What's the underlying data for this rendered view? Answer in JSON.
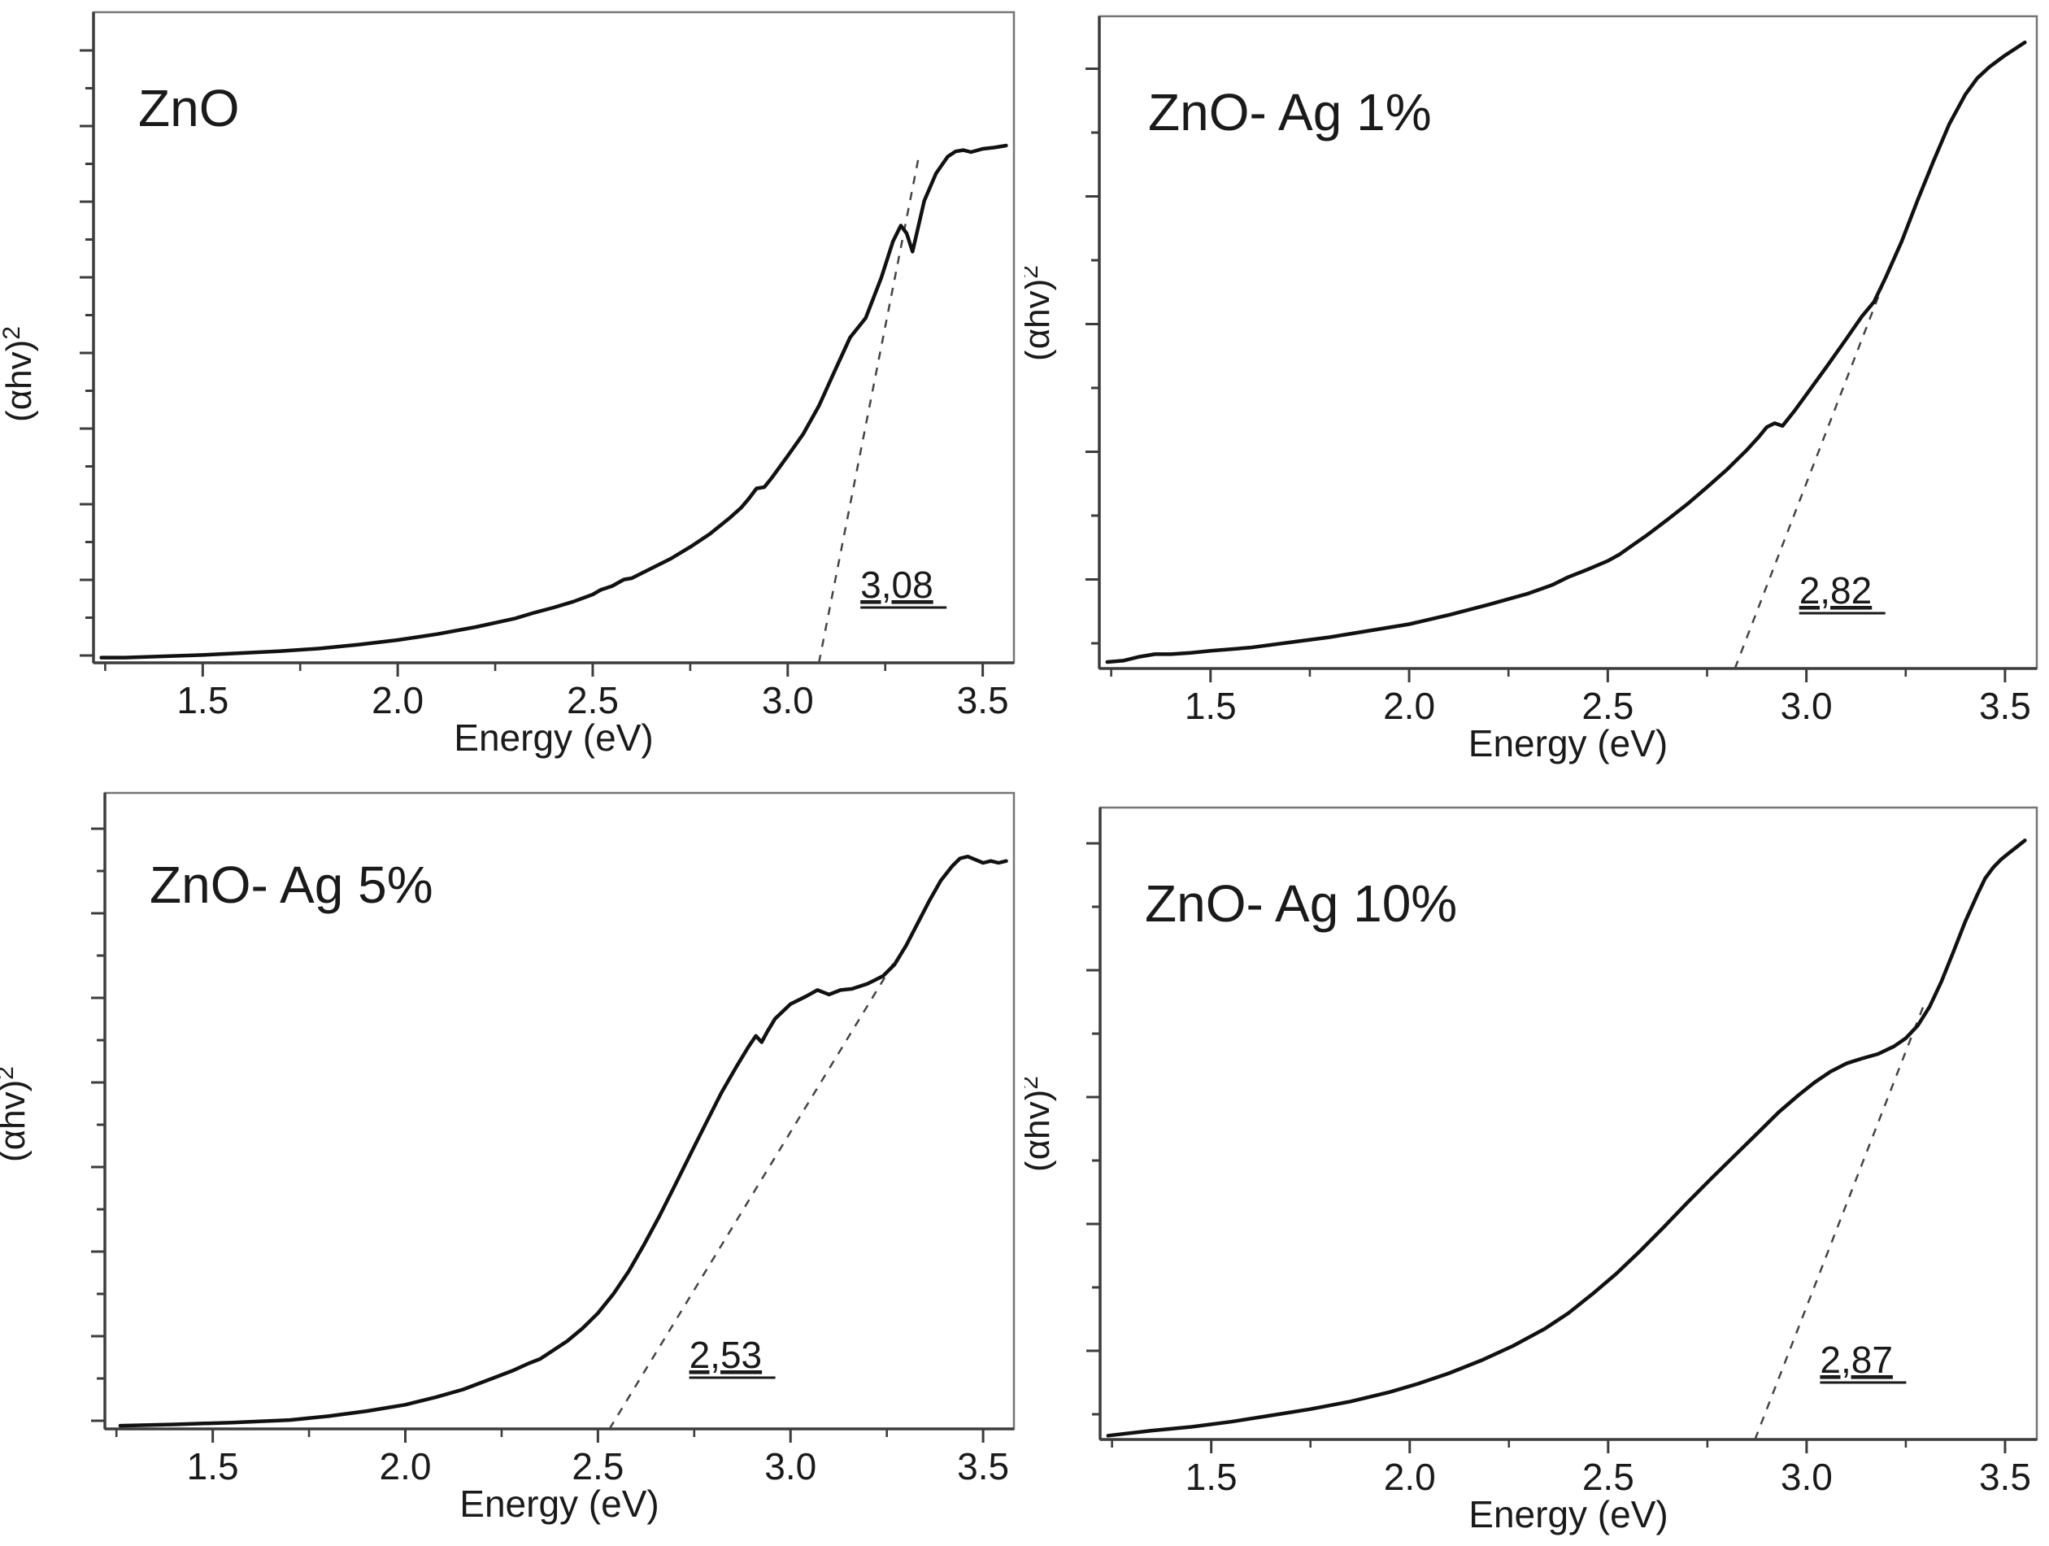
{
  "page": {
    "background": "#ffffff"
  },
  "colors": {
    "curve": "#111111",
    "axis": "#3c3c3c",
    "frame": "#757575",
    "dashed_line": "#444444",
    "text": "#1a1a1a"
  },
  "chart_data": [
    {
      "type": "line",
      "title": "ZnO",
      "xlabel": "Energy (eV)",
      "ylabel": "(αhv)²",
      "ylabel_base": "(αhv)",
      "ylabel_exponent": "2",
      "x_axis": {
        "min": 1.22,
        "max": 3.58,
        "major_ticks": [
          1.5,
          2.0,
          2.5,
          3.0,
          3.5
        ],
        "tick_labels": [
          "1.5",
          "2.0",
          "2.5",
          "3.0",
          "3.5"
        ],
        "minor_ticks": [
          1.25,
          1.75,
          2.25,
          2.75,
          3.25
        ]
      },
      "y_axis": {
        "label": "(αhv)²",
        "units": "arbitrary",
        "numeric_labels_shown": false
      },
      "band_gap": {
        "label": "3,08",
        "value_eV": 3.08,
        "underlined": true
      },
      "tangent_line": {
        "style": "dashed",
        "x_intercept_eV": 3.08,
        "start": [
          3.08,
          0.0
        ],
        "end": [
          3.335,
          0.775
        ]
      },
      "series": [
        {
          "name": "ZnO",
          "points": [
            [
              1.24,
              0.008
            ],
            [
              1.3,
              0.008
            ],
            [
              1.4,
              0.01
            ],
            [
              1.5,
              0.012
            ],
            [
              1.6,
              0.015
            ],
            [
              1.7,
              0.018
            ],
            [
              1.8,
              0.022
            ],
            [
              1.9,
              0.028
            ],
            [
              2.0,
              0.035
            ],
            [
              2.1,
              0.044
            ],
            [
              2.2,
              0.055
            ],
            [
              2.3,
              0.068
            ],
            [
              2.35,
              0.077
            ],
            [
              2.4,
              0.085
            ],
            [
              2.45,
              0.094
            ],
            [
              2.5,
              0.105
            ],
            [
              2.52,
              0.112
            ],
            [
              2.55,
              0.118
            ],
            [
              2.58,
              0.128
            ],
            [
              2.6,
              0.13
            ],
            [
              2.65,
              0.145
            ],
            [
              2.7,
              0.16
            ],
            [
              2.75,
              0.178
            ],
            [
              2.8,
              0.198
            ],
            [
              2.85,
              0.222
            ],
            [
              2.88,
              0.238
            ],
            [
              2.9,
              0.252
            ],
            [
              2.92,
              0.268
            ],
            [
              2.94,
              0.27
            ],
            [
              2.96,
              0.285
            ],
            [
              3.0,
              0.318
            ],
            [
              3.04,
              0.352
            ],
            [
              3.08,
              0.395
            ],
            [
              3.12,
              0.448
            ],
            [
              3.16,
              0.5
            ],
            [
              3.2,
              0.53
            ],
            [
              3.24,
              0.592
            ],
            [
              3.27,
              0.648
            ],
            [
              3.29,
              0.672
            ],
            [
              3.305,
              0.66
            ],
            [
              3.32,
              0.632
            ],
            [
              3.33,
              0.658
            ],
            [
              3.35,
              0.71
            ],
            [
              3.38,
              0.752
            ],
            [
              3.41,
              0.778
            ],
            [
              3.43,
              0.786
            ],
            [
              3.45,
              0.788
            ],
            [
              3.47,
              0.785
            ],
            [
              3.5,
              0.79
            ],
            [
              3.53,
              0.792
            ],
            [
              3.56,
              0.795
            ]
          ]
        }
      ]
    },
    {
      "type": "line",
      "title": "ZnO- Ag 1%",
      "xlabel": "Energy (eV)",
      "ylabel": "(αhv)²",
      "ylabel_base": "(αhv)",
      "ylabel_exponent": "2",
      "x_axis": {
        "min": 1.22,
        "max": 3.58,
        "major_ticks": [
          1.5,
          2.0,
          2.5,
          3.0,
          3.5
        ],
        "tick_labels": [
          "1.5",
          "2.0",
          "2.5",
          "3.0",
          "3.5"
        ],
        "minor_ticks": [
          1.25,
          1.75,
          2.25,
          2.75,
          3.25
        ]
      },
      "y_axis": {
        "label": "(αhv)²",
        "units": "arbitrary",
        "numeric_labels_shown": false
      },
      "band_gap": {
        "label": "2,82",
        "value_eV": 2.82,
        "underlined": true
      },
      "tangent_line": {
        "style": "dashed",
        "x_intercept_eV": 2.82,
        "start": [
          2.82,
          0.0
        ],
        "end": [
          3.2,
          0.6
        ]
      },
      "series": [
        {
          "name": "ZnO- Ag 1%",
          "points": [
            [
              1.24,
              0.01
            ],
            [
              1.28,
              0.012
            ],
            [
              1.32,
              0.018
            ],
            [
              1.36,
              0.022
            ],
            [
              1.4,
              0.022
            ],
            [
              1.45,
              0.024
            ],
            [
              1.5,
              0.027
            ],
            [
              1.6,
              0.032
            ],
            [
              1.7,
              0.04
            ],
            [
              1.8,
              0.048
            ],
            [
              1.9,
              0.058
            ],
            [
              2.0,
              0.068
            ],
            [
              2.1,
              0.082
            ],
            [
              2.2,
              0.098
            ],
            [
              2.3,
              0.115
            ],
            [
              2.36,
              0.128
            ],
            [
              2.4,
              0.14
            ],
            [
              2.45,
              0.152
            ],
            [
              2.5,
              0.165
            ],
            [
              2.53,
              0.175
            ],
            [
              2.56,
              0.188
            ],
            [
              2.6,
              0.205
            ],
            [
              2.65,
              0.228
            ],
            [
              2.7,
              0.252
            ],
            [
              2.75,
              0.278
            ],
            [
              2.8,
              0.305
            ],
            [
              2.85,
              0.335
            ],
            [
              2.88,
              0.355
            ],
            [
              2.9,
              0.37
            ],
            [
              2.92,
              0.376
            ],
            [
              2.94,
              0.372
            ],
            [
              2.97,
              0.395
            ],
            [
              3.0,
              0.42
            ],
            [
              3.05,
              0.462
            ],
            [
              3.1,
              0.505
            ],
            [
              3.14,
              0.54
            ],
            [
              3.17,
              0.562
            ],
            [
              3.2,
              0.6
            ],
            [
              3.24,
              0.655
            ],
            [
              3.28,
              0.718
            ],
            [
              3.32,
              0.778
            ],
            [
              3.36,
              0.835
            ],
            [
              3.4,
              0.88
            ],
            [
              3.43,
              0.905
            ],
            [
              3.46,
              0.922
            ],
            [
              3.5,
              0.94
            ],
            [
              3.53,
              0.952
            ],
            [
              3.55,
              0.96
            ]
          ]
        }
      ]
    },
    {
      "type": "line",
      "title": "ZnO- Ag 5%",
      "xlabel": "Energy (eV)",
      "ylabel": "(αhv)²",
      "ylabel_base": "(αhv)",
      "ylabel_exponent": "2",
      "x_axis": {
        "min": 1.22,
        "max": 3.58,
        "major_ticks": [
          1.5,
          2.0,
          2.5,
          3.0,
          3.5
        ],
        "tick_labels": [
          "1.5",
          "2.0",
          "2.5",
          "3.0",
          "3.5"
        ],
        "minor_ticks": [
          1.25,
          1.75,
          2.25,
          2.75,
          3.25
        ]
      },
      "y_axis": {
        "label": "(αhv)²",
        "units": "arbitrary",
        "numeric_labels_shown": false
      },
      "band_gap": {
        "label": "2,53",
        "value_eV": 2.53,
        "underlined": true
      },
      "tangent_line": {
        "style": "dashed",
        "x_intercept_eV": 2.53,
        "start": [
          2.53,
          0.0
        ],
        "end": [
          3.27,
          0.735
        ]
      },
      "series": [
        {
          "name": "ZnO- Ag 5%",
          "points": [
            [
              1.26,
              0.005
            ],
            [
              1.4,
              0.007
            ],
            [
              1.55,
              0.01
            ],
            [
              1.7,
              0.014
            ],
            [
              1.8,
              0.02
            ],
            [
              1.9,
              0.028
            ],
            [
              2.0,
              0.038
            ],
            [
              2.08,
              0.05
            ],
            [
              2.15,
              0.062
            ],
            [
              2.22,
              0.078
            ],
            [
              2.28,
              0.092
            ],
            [
              2.32,
              0.103
            ],
            [
              2.35,
              0.11
            ],
            [
              2.38,
              0.122
            ],
            [
              2.42,
              0.138
            ],
            [
              2.46,
              0.158
            ],
            [
              2.5,
              0.182
            ],
            [
              2.54,
              0.212
            ],
            [
              2.58,
              0.248
            ],
            [
              2.62,
              0.29
            ],
            [
              2.66,
              0.335
            ],
            [
              2.7,
              0.383
            ],
            [
              2.74,
              0.432
            ],
            [
              2.78,
              0.48
            ],
            [
              2.82,
              0.528
            ],
            [
              2.86,
              0.57
            ],
            [
              2.89,
              0.6
            ],
            [
              2.91,
              0.618
            ],
            [
              2.925,
              0.608
            ],
            [
              2.94,
              0.625
            ],
            [
              2.96,
              0.645
            ],
            [
              3.0,
              0.668
            ],
            [
              3.04,
              0.68
            ],
            [
              3.07,
              0.69
            ],
            [
              3.1,
              0.683
            ],
            [
              3.13,
              0.69
            ],
            [
              3.16,
              0.692
            ],
            [
              3.2,
              0.7
            ],
            [
              3.24,
              0.712
            ],
            [
              3.27,
              0.73
            ],
            [
              3.3,
              0.76
            ],
            [
              3.33,
              0.795
            ],
            [
              3.36,
              0.83
            ],
            [
              3.39,
              0.862
            ],
            [
              3.42,
              0.885
            ],
            [
              3.44,
              0.897
            ],
            [
              3.46,
              0.9
            ],
            [
              3.48,
              0.895
            ],
            [
              3.5,
              0.89
            ],
            [
              3.52,
              0.893
            ],
            [
              3.54,
              0.89
            ],
            [
              3.56,
              0.893
            ]
          ]
        }
      ]
    },
    {
      "type": "line",
      "title": "ZnO- Ag 10%",
      "xlabel": "Energy (eV)",
      "ylabel": "(αhv)²",
      "ylabel_base": "(αhv)",
      "ylabel_exponent": "2",
      "x_axis": {
        "min": 1.22,
        "max": 3.58,
        "major_ticks": [
          1.5,
          2.0,
          2.5,
          3.0,
          3.5
        ],
        "tick_labels": [
          "1.5",
          "2.0",
          "2.5",
          "3.0",
          "3.5"
        ],
        "minor_ticks": [
          1.25,
          1.75,
          2.25,
          2.75,
          3.25
        ]
      },
      "y_axis": {
        "label": "(αhv)²",
        "units": "arbitrary",
        "numeric_labels_shown": false
      },
      "band_gap": {
        "label": "2,87",
        "value_eV": 2.87,
        "underlined": true
      },
      "tangent_line": {
        "style": "dashed",
        "x_intercept_eV": 2.87,
        "start": [
          2.87,
          0.0
        ],
        "end": [
          3.3,
          0.695
        ]
      },
      "series": [
        {
          "name": "ZnO- Ag 10%",
          "points": [
            [
              1.24,
              0.006
            ],
            [
              1.35,
              0.014
            ],
            [
              1.45,
              0.02
            ],
            [
              1.55,
              0.028
            ],
            [
              1.65,
              0.038
            ],
            [
              1.75,
              0.048
            ],
            [
              1.85,
              0.06
            ],
            [
              1.95,
              0.075
            ],
            [
              2.02,
              0.088
            ],
            [
              2.1,
              0.105
            ],
            [
              2.18,
              0.125
            ],
            [
              2.26,
              0.148
            ],
            [
              2.34,
              0.175
            ],
            [
              2.4,
              0.2
            ],
            [
              2.46,
              0.23
            ],
            [
              2.52,
              0.262
            ],
            [
              2.58,
              0.298
            ],
            [
              2.64,
              0.336
            ],
            [
              2.7,
              0.375
            ],
            [
              2.76,
              0.413
            ],
            [
              2.82,
              0.45
            ],
            [
              2.88,
              0.487
            ],
            [
              2.93,
              0.518
            ],
            [
              2.98,
              0.545
            ],
            [
              3.02,
              0.565
            ],
            [
              3.06,
              0.582
            ],
            [
              3.1,
              0.595
            ],
            [
              3.14,
              0.603
            ],
            [
              3.18,
              0.61
            ],
            [
              3.22,
              0.622
            ],
            [
              3.25,
              0.635
            ],
            [
              3.28,
              0.655
            ],
            [
              3.31,
              0.685
            ],
            [
              3.34,
              0.725
            ],
            [
              3.37,
              0.772
            ],
            [
              3.4,
              0.82
            ],
            [
              3.43,
              0.862
            ],
            [
              3.45,
              0.888
            ],
            [
              3.47,
              0.905
            ],
            [
              3.49,
              0.918
            ],
            [
              3.51,
              0.928
            ],
            [
              3.53,
              0.938
            ],
            [
              3.55,
              0.948
            ]
          ]
        }
      ]
    }
  ]
}
